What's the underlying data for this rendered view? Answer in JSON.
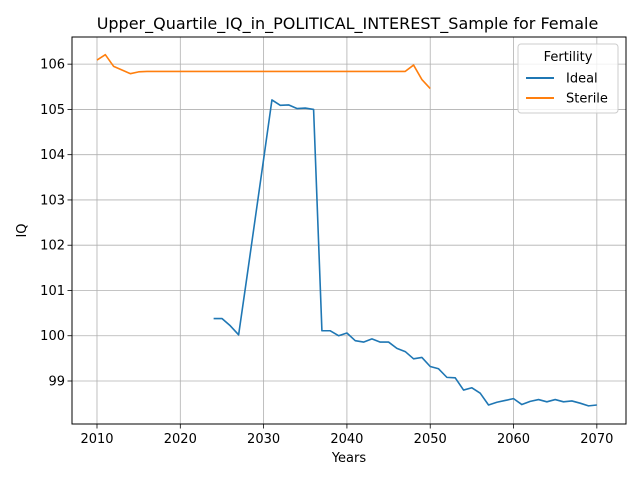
{
  "chart_data": {
    "type": "line",
    "title": "Upper_Quartile_IQ_in_POLITICAL_INTEREST_Sample for Female",
    "xlabel": "Years",
    "ylabel": "IQ",
    "xlim": [
      2007,
      2073.5
    ],
    "ylim": [
      98.05,
      106.6
    ],
    "xticks": [
      2010,
      2020,
      2030,
      2040,
      2050,
      2060,
      2070
    ],
    "yticks": [
      99,
      100,
      101,
      102,
      103,
      104,
      105,
      106
    ],
    "grid": true,
    "legend": {
      "title": "Fertility",
      "placement": "top-right"
    },
    "series": [
      {
        "name": "Ideal",
        "color": "#1f77b4",
        "x": [
          2024,
          2025,
          2026,
          2027,
          2028,
          2029,
          2030,
          2031,
          2032,
          2033,
          2034,
          2035,
          2036,
          2037,
          2038,
          2039,
          2040,
          2041,
          2042,
          2043,
          2044,
          2045,
          2046,
          2047,
          2048,
          2049,
          2050,
          2051,
          2052,
          2053,
          2054,
          2055,
          2056,
          2057,
          2058,
          2059,
          2060,
          2061,
          2062,
          2063,
          2064,
          2065,
          2066,
          2067,
          2068,
          2069,
          2070
        ],
        "y": [
          100.38,
          100.38,
          100.22,
          100.02,
          101.3,
          102.6,
          103.9,
          105.21,
          105.09,
          105.1,
          105.02,
          105.03,
          105.0,
          100.11,
          100.11,
          100.0,
          100.06,
          99.89,
          99.86,
          99.93,
          99.86,
          99.86,
          99.72,
          99.65,
          99.49,
          99.52,
          99.32,
          99.27,
          99.08,
          99.07,
          98.8,
          98.85,
          98.73,
          98.47,
          98.53,
          98.57,
          98.61,
          98.48,
          98.55,
          98.59,
          98.54,
          98.59,
          98.54,
          98.56,
          98.51,
          98.45,
          98.47
        ]
      },
      {
        "name": "Sterile",
        "color": "#ff7f0e",
        "x": [
          2010,
          2011,
          2012,
          2013,
          2014,
          2015,
          2016,
          2017,
          2018,
          2019,
          2020,
          2021,
          2022,
          2023,
          2024,
          2025,
          2026,
          2027,
          2028,
          2029,
          2030,
          2031,
          2032,
          2033,
          2034,
          2035,
          2036,
          2037,
          2038,
          2039,
          2040,
          2041,
          2042,
          2043,
          2044,
          2045,
          2046,
          2047,
          2048,
          2049,
          2050
        ],
        "y": [
          106.09,
          106.21,
          105.95,
          105.87,
          105.79,
          105.83,
          105.84,
          105.84,
          105.84,
          105.84,
          105.84,
          105.84,
          105.84,
          105.84,
          105.84,
          105.84,
          105.84,
          105.84,
          105.84,
          105.84,
          105.84,
          105.84,
          105.84,
          105.84,
          105.84,
          105.84,
          105.84,
          105.84,
          105.84,
          105.84,
          105.84,
          105.84,
          105.84,
          105.84,
          105.84,
          105.84,
          105.84,
          105.84,
          105.98,
          105.66,
          105.46
        ]
      }
    ]
  }
}
